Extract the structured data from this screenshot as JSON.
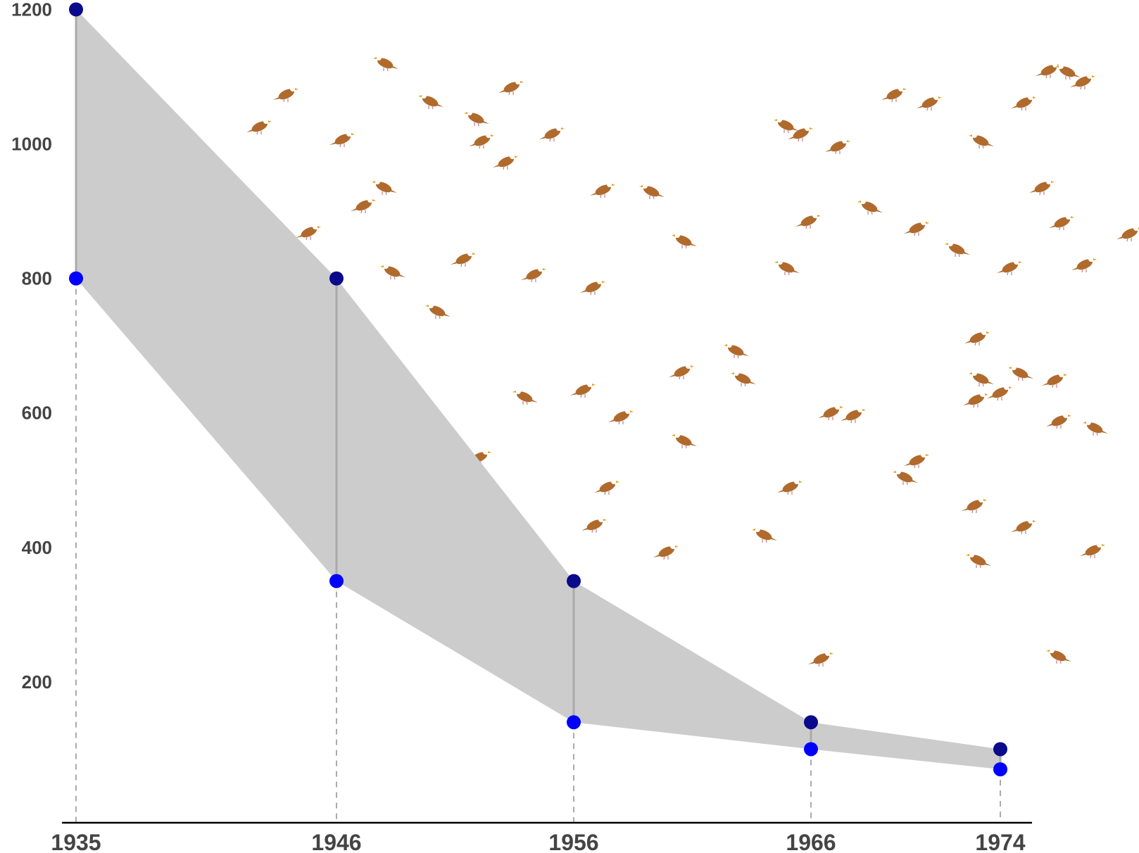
{
  "chart_data": {
    "type": "area",
    "title": "",
    "xlabel": "",
    "ylabel": "",
    "x": [
      "1935",
      "1946",
      "1956",
      "1966",
      "1974"
    ],
    "series": [
      {
        "values": [
          1200,
          800,
          350,
          140,
          100
        ]
      },
      {
        "values": [
          800,
          350,
          140,
          100,
          70
        ]
      }
    ],
    "ylim": [
      0,
      1200
    ],
    "yticks": [
      "200",
      "400",
      "600",
      "800",
      "1000",
      "1200"
    ],
    "xticks": [
      "1935",
      "1946",
      "1956",
      "1966",
      "1974"
    ],
    "grid": false,
    "legend": "none",
    "decoration": "scattered-eagle-icons",
    "colors": {
      "upper_point": "#0a0a8c",
      "lower_point": "#0000ff",
      "band_fill": "#cccccc",
      "connector": "#aaaaaa",
      "dashed_guide": "#aaaaaa",
      "axis_line": "#000000",
      "tick_text": "#444444",
      "eagle_body": "#b06a2c",
      "eagle_head": "#ffffff",
      "eagle_beak": "#e0a020"
    }
  }
}
